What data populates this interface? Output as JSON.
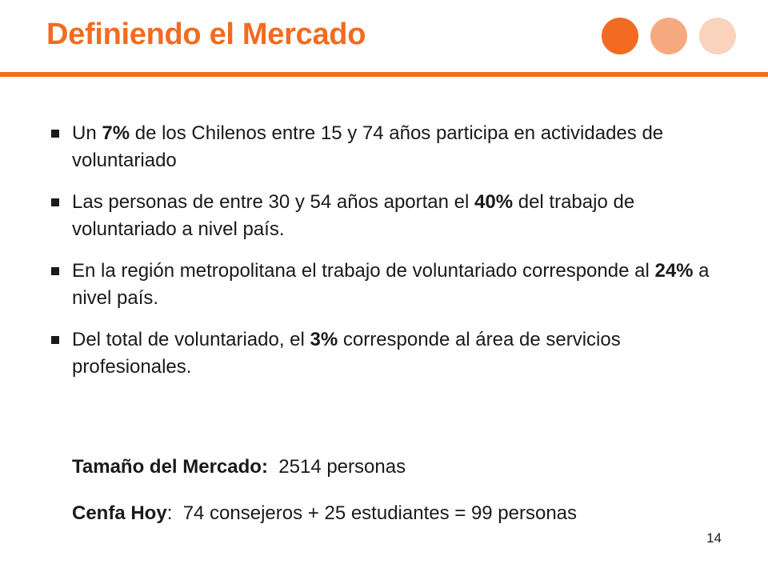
{
  "slide": {
    "title": "Definiendo el Mercado",
    "page_number": "14"
  },
  "bullets": [
    {
      "before": "Un ",
      "bold": "7%",
      "after": " de los Chilenos entre 15 y 74 años participa en actividades de voluntariado"
    },
    {
      "before": "Las personas de entre 30 y 54 años aportan el ",
      "bold": "40%",
      "after": " del trabajo de voluntariado a nivel país."
    },
    {
      "before": "En la región metropolitana el trabajo de voluntariado corresponde al ",
      "bold": "24%",
      "after": " a nivel país."
    },
    {
      "before": "Del total de voluntariado, el ",
      "bold": "3%",
      "after": " corresponde al área de servicios profesionales."
    }
  ],
  "summary": {
    "market_label": "Tamaño del Mercado:",
    "market_value": "  2514 personas",
    "cenfa_label": "Cenfa Hoy",
    "cenfa_value": ":  74 consejeros + 25 estudiantes = 99 personas"
  },
  "colors": {
    "accent": "#f26b21",
    "accent_mid": "#f6a97e",
    "accent_light": "#fad3bd"
  }
}
